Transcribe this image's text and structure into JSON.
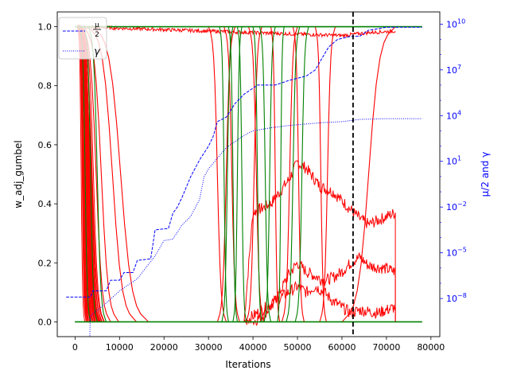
{
  "chart_data": {
    "type": "line",
    "xlabel": "Iterations",
    "ylabel": "w_adj_gumbel",
    "ylabel_right": "μ/2 and γ",
    "xlim": [
      -4000,
      82000
    ],
    "ylim": [
      -0.05,
      1.05
    ],
    "ylim_right_log10": [
      -10.5,
      10.8
    ],
    "x_ticks": [
      0,
      10000,
      20000,
      30000,
      40000,
      50000,
      60000,
      70000,
      80000
    ],
    "x_tick_labels": [
      "0",
      "10000",
      "20000",
      "30000",
      "40000",
      "50000",
      "60000",
      "70000",
      "80000"
    ],
    "y_ticks": [
      0.0,
      0.2,
      0.4,
      0.6,
      0.8,
      1.0
    ],
    "y_tick_labels": [
      "0.0",
      "0.2",
      "0.4",
      "0.6",
      "0.8",
      "1.0"
    ],
    "y_right_ticks_log10": [
      -8,
      -5,
      -2,
      1,
      4,
      7,
      10
    ],
    "y_right_tick_labels": [
      {
        "base": "10",
        "exp": "−8"
      },
      {
        "base": "10",
        "exp": "−5"
      },
      {
        "base": "10",
        "exp": "−2"
      },
      {
        "base": "10",
        "exp": "1"
      },
      {
        "base": "10",
        "exp": "4"
      },
      {
        "base": "10",
        "exp": "7"
      },
      {
        "base": "10",
        "exp": "10"
      }
    ],
    "vline_x": 62500,
    "legend": {
      "placement": "top-left",
      "entries": [
        {
          "label_top": "μ",
          "label_bottom": "2",
          "style": "dashed",
          "color": "#0000ff"
        },
        {
          "label": "γ",
          "style": "dotted",
          "color": "#0000ff"
        }
      ]
    },
    "colors": {
      "red": "#ff0000",
      "green": "#008000",
      "blue": "#0000ff",
      "black": "#000000"
    },
    "mu_half_log10": [
      [
        -2000,
        -7.9
      ],
      [
        3500,
        -7.9
      ],
      [
        4000,
        -7.5
      ],
      [
        7000,
        -7.5
      ],
      [
        8000,
        -6.8
      ],
      [
        10000,
        -6.8
      ],
      [
        11000,
        -6.3
      ],
      [
        13000,
        -6.3
      ],
      [
        14000,
        -5.5
      ],
      [
        17000,
        -5.4
      ],
      [
        18000,
        -3.5
      ],
      [
        21000,
        -3.4
      ],
      [
        22000,
        -2.4
      ],
      [
        23000,
        -2.0
      ],
      [
        24000,
        -1.4
      ],
      [
        26000,
        0.0
      ],
      [
        28000,
        1.1
      ],
      [
        30000,
        2.0
      ],
      [
        31000,
        2.6
      ],
      [
        32000,
        3.6
      ],
      [
        34000,
        3.9
      ],
      [
        36000,
        4.8
      ],
      [
        38000,
        5.4
      ],
      [
        40000,
        5.8
      ],
      [
        41000,
        6.0
      ],
      [
        45000,
        6.0
      ],
      [
        48000,
        6.3
      ],
      [
        52000,
        6.6
      ],
      [
        54000,
        7.0
      ],
      [
        56000,
        8.0
      ],
      [
        57000,
        8.5
      ],
      [
        59000,
        9.0
      ],
      [
        62000,
        9.2
      ],
      [
        64000,
        9.2
      ],
      [
        66000,
        9.6
      ],
      [
        70000,
        9.8
      ],
      [
        78000,
        9.8
      ]
    ],
    "gamma_log10": [
      [
        3300,
        -11.0
      ],
      [
        3400,
        -9.2
      ],
      [
        4000,
        -9.0
      ],
      [
        7000,
        -8.3
      ],
      [
        10000,
        -7.5
      ],
      [
        14000,
        -6.7
      ],
      [
        18000,
        -5.2
      ],
      [
        20000,
        -4.2
      ],
      [
        22000,
        -4.1
      ],
      [
        24000,
        -3.2
      ],
      [
        26000,
        -2.6
      ],
      [
        28000,
        -1.5
      ],
      [
        29000,
        0.0
      ],
      [
        30000,
        0.5
      ],
      [
        32000,
        1.2
      ],
      [
        34000,
        1.9
      ],
      [
        36000,
        2.3
      ],
      [
        38000,
        2.7
      ],
      [
        40000,
        3.0
      ],
      [
        44000,
        3.2
      ],
      [
        48000,
        3.35
      ],
      [
        52000,
        3.45
      ],
      [
        56000,
        3.55
      ],
      [
        60000,
        3.6
      ],
      [
        64000,
        3.75
      ],
      [
        70000,
        3.8
      ],
      [
        78000,
        3.8
      ]
    ],
    "red_edges": [
      {
        "kind": "down",
        "start": 500,
        "end": 5500,
        "hold_until": 72000
      },
      {
        "kind": "down",
        "start": 800,
        "end": 4500,
        "hold_until": 72000
      },
      {
        "kind": "down",
        "start": 1000,
        "end": 5000,
        "hold_until": 72000
      },
      {
        "kind": "down",
        "start": 1200,
        "end": 6500,
        "hold_until": 72000
      },
      {
        "kind": "down",
        "start": 1500,
        "end": 8000,
        "hold_until": 72000
      },
      {
        "kind": "down",
        "start": 2000,
        "end": 9800,
        "hold_until": 72000
      },
      {
        "kind": "down",
        "start": 3000,
        "end": 13800,
        "hold_until": 72000
      },
      {
        "kind": "down",
        "start": 4000,
        "end": 16500,
        "hold_until": 72000
      },
      {
        "kind": "down",
        "start": 30000,
        "end": 34000,
        "hold_until": 72000
      },
      {
        "kind": "down",
        "start": 33500,
        "end": 37000,
        "hold_until": 72000
      },
      {
        "kind": "down",
        "start": 39000,
        "end": 42500,
        "hold_until": 72000
      },
      {
        "kind": "down",
        "start": 44000,
        "end": 46000,
        "hold_until": 72000
      },
      {
        "kind": "down",
        "start": 49000,
        "end": 51500,
        "hold_until": 72000
      },
      {
        "kind": "down",
        "start": 54000,
        "end": 56500,
        "hold_until": 72000
      },
      {
        "kind": "up",
        "start": 32000,
        "end": 36000,
        "hold_until": 72000
      },
      {
        "kind": "up",
        "start": 38500,
        "end": 42000,
        "hold_until": 72000
      },
      {
        "kind": "up",
        "start": 46500,
        "end": 50000,
        "hold_until": 72000
      },
      {
        "kind": "up",
        "start": 55000,
        "end": 58500,
        "hold_until": 72000
      },
      {
        "kind": "up",
        "start": 60000,
        "end": 72000,
        "hold_until": 72000
      }
    ],
    "red_noisy": [
      {
        "points": [
          [
            38000,
            0.0
          ],
          [
            39500,
            0.28
          ],
          [
            40000,
            0.37
          ],
          [
            44000,
            0.4
          ],
          [
            46000,
            0.44
          ],
          [
            48000,
            0.48
          ],
          [
            50000,
            0.54
          ],
          [
            52000,
            0.52
          ],
          [
            55000,
            0.46
          ],
          [
            58000,
            0.44
          ],
          [
            60000,
            0.41
          ],
          [
            62000,
            0.38
          ],
          [
            64000,
            0.35
          ],
          [
            66000,
            0.33
          ],
          [
            69000,
            0.35
          ],
          [
            72000,
            0.37
          ],
          [
            72000,
            0.0
          ]
        ]
      },
      {
        "points": [
          [
            40000,
            0.0
          ],
          [
            42000,
            0.02
          ],
          [
            44000,
            0.05
          ],
          [
            46000,
            0.1
          ],
          [
            48000,
            0.16
          ],
          [
            50000,
            0.2
          ],
          [
            52000,
            0.17
          ],
          [
            56000,
            0.14
          ],
          [
            58000,
            0.15
          ],
          [
            60000,
            0.17
          ],
          [
            62000,
            0.2
          ],
          [
            64000,
            0.22
          ],
          [
            66000,
            0.19
          ],
          [
            70000,
            0.18
          ],
          [
            72000,
            0.17
          ],
          [
            72000,
            0.0
          ]
        ]
      },
      {
        "points": [
          [
            38000,
            0.0
          ],
          [
            40000,
            0.02
          ],
          [
            42000,
            0.04
          ],
          [
            44000,
            0.06
          ],
          [
            46000,
            0.08
          ],
          [
            48000,
            0.1
          ],
          [
            50000,
            0.12
          ],
          [
            52000,
            0.1
          ],
          [
            54000,
            0.12
          ],
          [
            56000,
            0.1
          ],
          [
            58000,
            0.07
          ],
          [
            60000,
            0.05
          ],
          [
            62000,
            0.03
          ],
          [
            64000,
            0.04
          ],
          [
            68000,
            0.03
          ],
          [
            72000,
            0.05
          ],
          [
            72000,
            0.0
          ]
        ]
      },
      {
        "points": [
          [
            500,
            1.0
          ],
          [
            10000,
            0.995
          ],
          [
            20000,
            0.99
          ],
          [
            30000,
            0.985
          ],
          [
            40000,
            0.98
          ],
          [
            50000,
            0.975
          ],
          [
            60000,
            0.97
          ],
          [
            66000,
            0.98
          ],
          [
            72000,
            0.985
          ]
        ]
      }
    ],
    "green_edges": [
      {
        "kind": "down",
        "start": 1000,
        "end": 3500,
        "hold_until": 78000
      },
      {
        "kind": "down",
        "start": 2000,
        "end": 5000,
        "hold_until": 78000
      },
      {
        "kind": "down",
        "start": 3000,
        "end": 7000,
        "hold_until": 78000
      },
      {
        "kind": "down",
        "start": 32500,
        "end": 34500,
        "hold_until": 78000
      },
      {
        "kind": "down",
        "start": 34500,
        "end": 36500,
        "hold_until": 78000
      },
      {
        "kind": "down",
        "start": 36500,
        "end": 38500,
        "hold_until": 78000
      },
      {
        "kind": "down",
        "start": 40000,
        "end": 42000,
        "hold_until": 78000
      },
      {
        "kind": "down",
        "start": 41500,
        "end": 44000,
        "hold_until": 78000
      },
      {
        "kind": "up",
        "start": 33000,
        "end": 35500,
        "hold_until": 78000
      },
      {
        "kind": "up",
        "start": 35500,
        "end": 37500,
        "hold_until": 78000
      },
      {
        "kind": "up",
        "start": 42500,
        "end": 45000,
        "hold_until": 78000
      },
      {
        "kind": "up",
        "start": 45500,
        "end": 47000,
        "hold_until": 78000
      },
      {
        "kind": "up",
        "start": 47500,
        "end": 50500,
        "hold_until": 78000
      },
      {
        "kind": "up",
        "start": 49500,
        "end": 52500,
        "hold_until": 78000
      }
    ]
  }
}
